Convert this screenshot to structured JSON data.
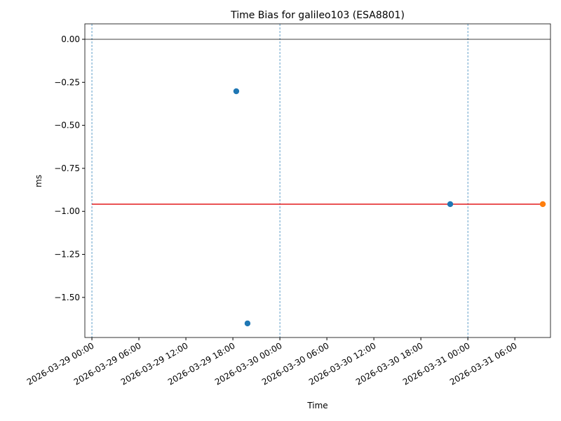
{
  "chart_data": {
    "type": "scatter",
    "title": "Time Bias for galileo103 (ESA8801)",
    "x_label": "Time",
    "y_label": "ms",
    "xlim": [
      "2026-03-28 23:06",
      "2026-03-31 10:33"
    ],
    "ylim": [
      -1.733,
      0.0897
    ],
    "xticks": [
      "2026-03-29 00:00",
      "2026-03-29 06:00",
      "2026-03-29 12:00",
      "2026-03-29 18:00",
      "2026-03-30 00:00",
      "2026-03-30 06:00",
      "2026-03-30 12:00",
      "2026-03-30 18:00",
      "2026-03-31 00:00",
      "2026-03-31 06:00"
    ],
    "yticks": [
      {
        "value": 0,
        "label": "0.00"
      },
      {
        "value": -0.25,
        "label": "−0.25"
      },
      {
        "value": -0.5,
        "label": "−0.50"
      },
      {
        "value": -0.75,
        "label": "−0.75"
      },
      {
        "value": -1.0,
        "label": "−1.00"
      },
      {
        "value": -1.25,
        "label": "−1.25"
      },
      {
        "value": -1.5,
        "label": "−1.50"
      }
    ],
    "hline": {
      "value": 0,
      "color": "#000000"
    },
    "vlines": {
      "x": [
        "2026-03-29 00:00",
        "2026-03-30 00:00",
        "2026-03-31 00:00"
      ],
      "color": "#1f77b4"
    },
    "series": [
      {
        "style": "line",
        "color": "#e41a1c",
        "x": [
          "2026-03-29 00:00",
          "2026-03-31 09:34"
        ],
        "values": [
          -0.958,
          -0.958
        ]
      },
      {
        "style": "scatter",
        "color": "#1f77b4",
        "x": [
          "2026-03-29 18:26",
          "2026-03-29 19:52",
          "2026-03-30 21:45"
        ],
        "values": [
          -0.302,
          -1.651,
          -0.958
        ]
      },
      {
        "style": "scatter",
        "color": "#ff7f0e",
        "x": [
          "2026-03-31 09:34"
        ],
        "values": [
          -0.958
        ]
      }
    ]
  }
}
